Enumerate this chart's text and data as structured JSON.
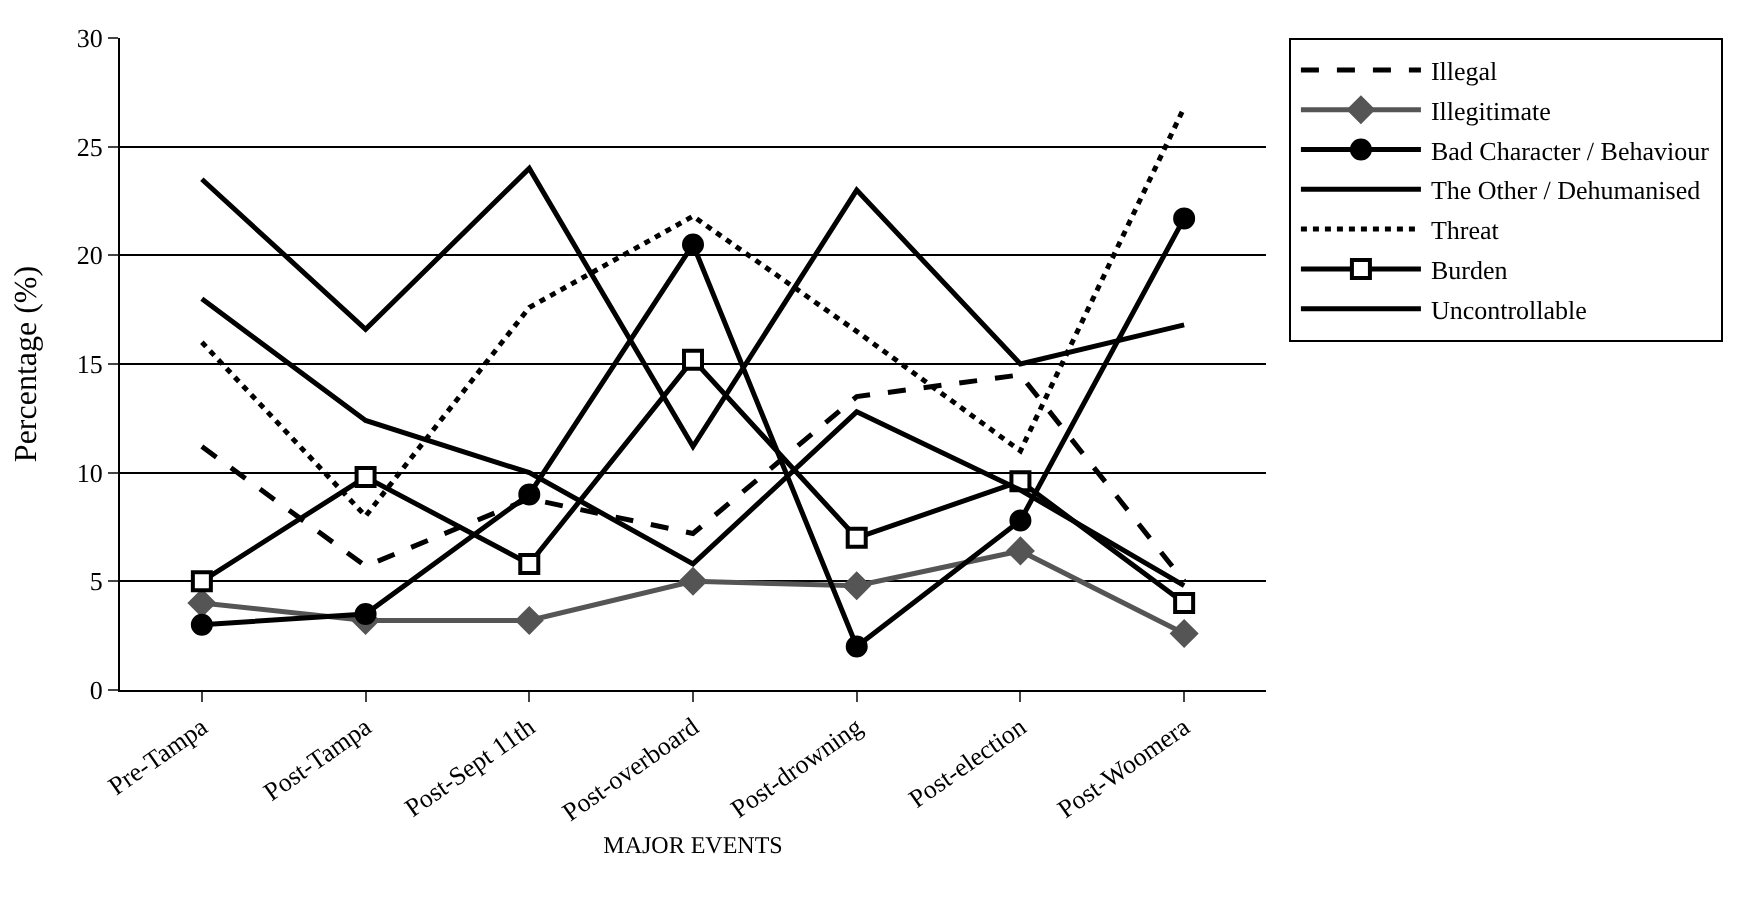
{
  "chart_data": {
    "type": "line",
    "xlabel": "MAJOR EVENTS",
    "ylabel": "Percentage (%)",
    "categories": [
      "Pre-Tampa",
      "Post-Tampa",
      "Post-Sept 11th",
      "Post-overboard",
      "Post-drowning",
      "Post-election",
      "Post-Woomera"
    ],
    "series": [
      {
        "name": "Illegal",
        "color": "#000000",
        "line_style": "dashed",
        "marker": "none",
        "values": [
          11.2,
          5.7,
          8.8,
          7.2,
          13.5,
          14.5,
          5
        ]
      },
      {
        "name": "Illegitimate",
        "color": "#555555",
        "line_style": "solid",
        "marker": "diamond",
        "values": [
          4,
          3.2,
          3.2,
          5,
          4.8,
          6.4,
          2.6
        ]
      },
      {
        "name": "Bad Character / Behaviour",
        "color": "#000000",
        "line_style": "solid",
        "marker": "circle",
        "values": [
          3,
          3.5,
          9,
          20.5,
          2,
          7.8,
          21.7
        ]
      },
      {
        "name": "The Other / Dehumanised",
        "color": "#000000",
        "line_style": "solid",
        "marker": "none",
        "values": [
          23.5,
          16.6,
          24,
          11.2,
          23,
          15,
          16.8
        ]
      },
      {
        "name": "Threat",
        "color": "#000000",
        "line_style": "dotted",
        "marker": "none",
        "values": [
          16,
          8,
          17.6,
          21.8,
          16.5,
          11,
          26.8
        ]
      },
      {
        "name": "Burden",
        "color": "#000000",
        "line_style": "solid",
        "marker": "square",
        "values": [
          5,
          9.8,
          5.8,
          15.2,
          7,
          9.6,
          4
        ]
      },
      {
        "name": "Uncontrollable",
        "color": "#000000",
        "line_style": "solid",
        "marker": "none",
        "values": [
          18,
          12.4,
          10,
          5.8,
          12.8,
          9.2,
          4.8
        ]
      }
    ],
    "ylim": [
      0,
      30
    ],
    "yticks": [
      0,
      5,
      10,
      15,
      20,
      25,
      30
    ],
    "grid": "y",
    "legend": "right"
  }
}
